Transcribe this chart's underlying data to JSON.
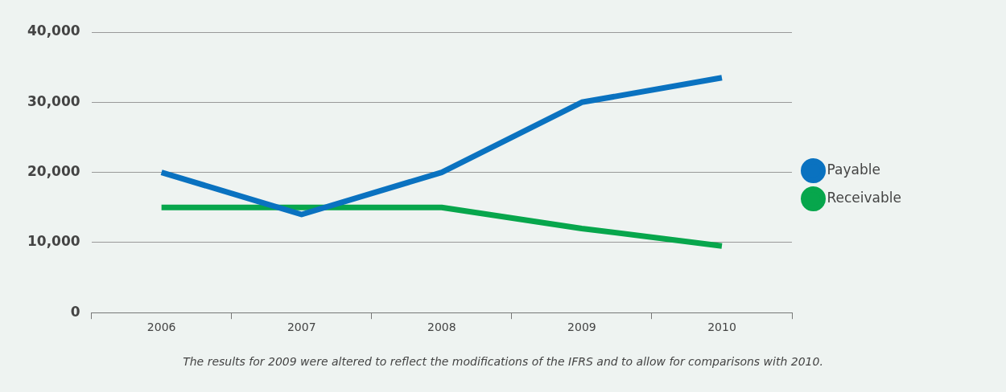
{
  "chart_data": {
    "type": "line",
    "categories": [
      "2006",
      "2007",
      "2008",
      "2009",
      "2010"
    ],
    "series": [
      {
        "name": "Payable",
        "color": "#0a72c0",
        "values": [
          20000,
          14000,
          20000,
          30000,
          33500
        ]
      },
      {
        "name": "Receivable",
        "color": "#07a64c",
        "values": [
          15000,
          15000,
          15000,
          12000,
          9500
        ]
      }
    ],
    "ylim": [
      0,
      40000
    ],
    "yticks": [
      0,
      {
        "value": 10000,
        "label": "10,000"
      },
      {
        "value": 20000,
        "label": "20,000"
      },
      {
        "value": 30000,
        "label": "30,000"
      },
      {
        "value": 40000,
        "label": "40,000"
      }
    ],
    "grid": "y",
    "legend": "right",
    "marker": "none",
    "line_style": "solid",
    "annotations": [
      "The results for 2009 were altered to reflect the modifications of the IFRS and to allow for comparisons with 2010."
    ]
  }
}
